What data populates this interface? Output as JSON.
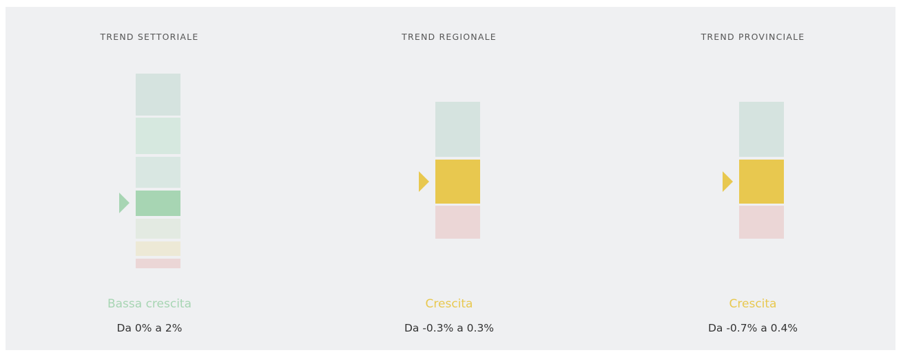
{
  "panels": [
    {
      "title": "TREND SETTORIALE",
      "status": "Bassa crescita",
      "range": "Da 0% a 2%"
    },
    {
      "title": "TREND REGIONALE",
      "status": "Crescita",
      "range": "Da -0.3% a 0.3%"
    },
    {
      "title": "TREND PROVINCIALE",
      "status": "Crescita",
      "range": "Da -0.7% a 0.4%"
    }
  ]
}
